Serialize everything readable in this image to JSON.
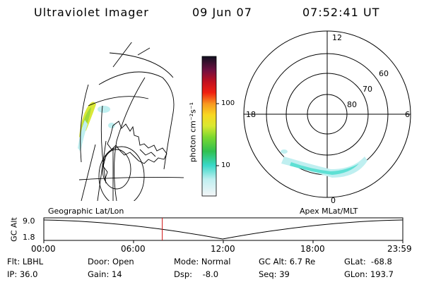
{
  "header": {
    "instrument": "Ultraviolet Imager",
    "date": "09 Jun 07",
    "time": "07:52:41 UT"
  },
  "colorbar": {
    "label": "photon cm⁻²s⁻¹",
    "ticks": [
      "100",
      "10"
    ]
  },
  "polar_plot": {
    "mlt_labels": [
      "12",
      "18",
      "6",
      "0"
    ],
    "lat_labels": [
      "60",
      "70",
      "80"
    ]
  },
  "orbit_panel": {
    "left_label": "Geographic Lat/Lon",
    "right_label": "Apex MLat/MLT",
    "y_axis_title": "GC Alt",
    "y_ticks": [
      "9.0",
      "1.8"
    ],
    "x_ticks": [
      "00:00",
      "06:00",
      "12:00",
      "18:00",
      "23:59"
    ],
    "current_time_fraction": 0.33
  },
  "info": {
    "filter": "Flt: LBHL",
    "ip": "IP: 36.0",
    "door": "Door: Open",
    "gain": "Gain: 14",
    "mode": "Mode: Normal",
    "dsp": "Dsp:    -8.0",
    "gc_alt": "GC Alt: 6.7 Re",
    "seq": "Seq: 39",
    "glat": "GLat:  -68.8",
    "glon": "GLon: 193.7"
  }
}
